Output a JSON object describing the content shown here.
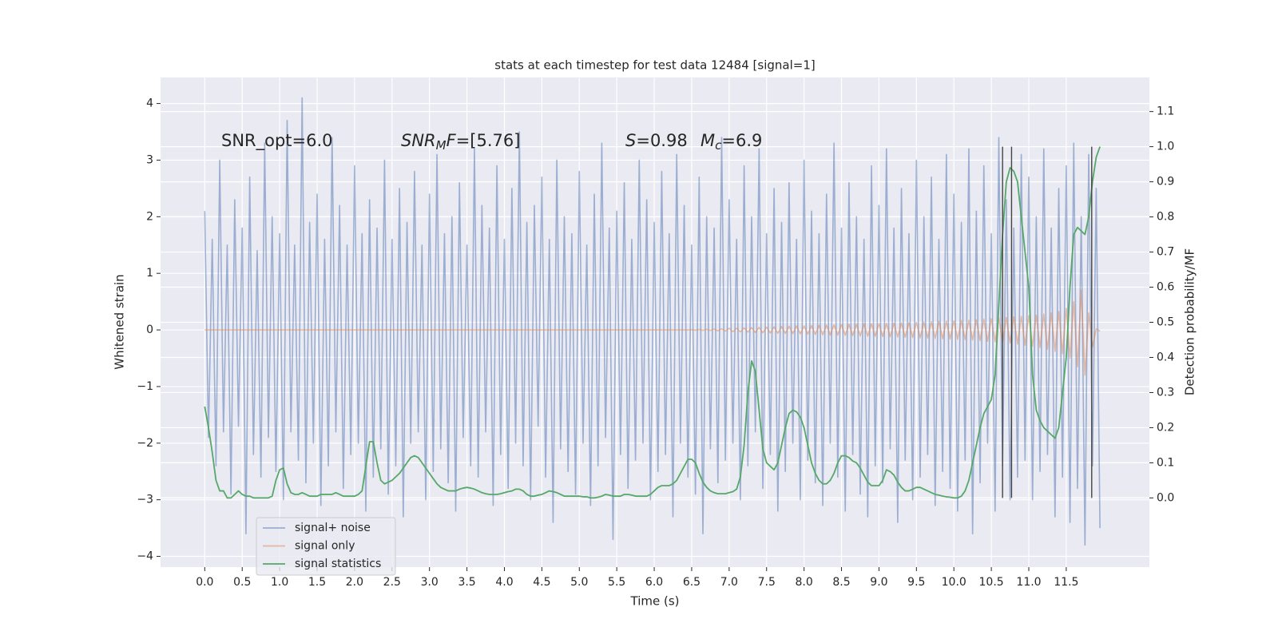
{
  "chart_data": {
    "type": "line",
    "title": "stats at each timestep for test data 12484 [signal=1]",
    "x_label": "Time (s)",
    "y_label": "Whitened strain",
    "y2_label": "Detection probability/MF",
    "xlim": [
      -0.59,
      12.61
    ],
    "ylim": [
      -4.19,
      4.46
    ],
    "y2lim": [
      -0.197,
      1.197
    ],
    "xticks": [
      {
        "value": 0,
        "label": "0.0"
      },
      0.5,
      {
        "value": 1,
        "label": "1.0"
      },
      1.5,
      {
        "value": 2,
        "label": "2.0"
      },
      2.5,
      {
        "value": 3,
        "label": "3.0"
      },
      3.5,
      {
        "value": 4,
        "label": "4.0"
      },
      4.5,
      {
        "value": 5,
        "label": "5.0"
      },
      5.5,
      {
        "value": 6,
        "label": "6.0"
      },
      6.5,
      {
        "value": 7,
        "label": "7.0"
      },
      7.5,
      {
        "value": 8,
        "label": "8.0"
      },
      8.5,
      {
        "value": 9,
        "label": "9.0"
      },
      9.5,
      {
        "value": 10,
        "label": "10.0"
      },
      10.5,
      {
        "value": 11,
        "label": "11.0"
      },
      11.5
    ],
    "yticks": [
      {
        "value": -4,
        "label": "−4"
      },
      {
        "value": -3,
        "label": "−3"
      },
      {
        "value": -2,
        "label": "−2"
      },
      {
        "value": -1,
        "label": "−1"
      },
      0,
      1,
      2,
      3,
      4
    ],
    "y2ticks": [
      {
        "value": 0,
        "label": "0.0"
      },
      0.1,
      0.2,
      0.3,
      0.4,
      0.5,
      0.6,
      0.7,
      0.8,
      0.9,
      {
        "value": 1,
        "label": "1.0"
      },
      1.1
    ],
    "grid": true,
    "legend": "lower left",
    "annotations": [
      [
        {
          "text": "SNR_opt=6.0"
        }
      ],
      [
        {
          "text": "SNR",
          "italic": true
        },
        {
          "text": "M",
          "italic": true,
          "sub": true
        },
        {
          "text": "F",
          "italic": true
        },
        {
          "text": "=[5.76]"
        }
      ],
      [
        {
          "text": "S",
          "italic": true
        },
        {
          "text": "=0.98"
        }
      ],
      [
        {
          "text": "M",
          "italic": true
        },
        {
          "text": "c",
          "italic": true,
          "sub": true
        },
        {
          "text": "=6.9"
        }
      ]
    ],
    "vline_color": "#444444",
    "vlines": [
      {
        "x": 10.65,
        "ymin": 0,
        "ymax": 1
      },
      {
        "x": 10.77,
        "ymin": 0,
        "ymax": 1
      },
      {
        "x": 11.84,
        "ymin": 0,
        "ymax": 1
      }
    ],
    "x": [
      0,
      0.05,
      0.1,
      0.15,
      0.2,
      0.25,
      0.3,
      0.35,
      0.4,
      0.45,
      0.5,
      0.55,
      0.6,
      0.65,
      0.7,
      0.75,
      0.8,
      0.85,
      0.9,
      0.95,
      1,
      1.05,
      1.1,
      1.15,
      1.2,
      1.25,
      1.3,
      1.35,
      1.4,
      1.45,
      1.5,
      1.55,
      1.6,
      1.65,
      1.7,
      1.75,
      1.8,
      1.85,
      1.9,
      1.95,
      2,
      2.05,
      2.1,
      2.15,
      2.2,
      2.25,
      2.3,
      2.35,
      2.4,
      2.45,
      2.5,
      2.55,
      2.6,
      2.65,
      2.7,
      2.75,
      2.8,
      2.85,
      2.9,
      2.95,
      3,
      3.05,
      3.1,
      3.15,
      3.2,
      3.25,
      3.3,
      3.35,
      3.4,
      3.45,
      3.5,
      3.55,
      3.6,
      3.65,
      3.7,
      3.75,
      3.8,
      3.85,
      3.9,
      3.95,
      4,
      4.05,
      4.1,
      4.15,
      4.2,
      4.25,
      4.3,
      4.35,
      4.4,
      4.45,
      4.5,
      4.55,
      4.6,
      4.65,
      4.7,
      4.75,
      4.8,
      4.85,
      4.9,
      4.95,
      5,
      5.05,
      5.1,
      5.15,
      5.2,
      5.25,
      5.3,
      5.35,
      5.4,
      5.45,
      5.5,
      5.55,
      5.6,
      5.65,
      5.7,
      5.75,
      5.8,
      5.85,
      5.9,
      5.95,
      6,
      6.05,
      6.1,
      6.15,
      6.2,
      6.25,
      6.3,
      6.35,
      6.4,
      6.45,
      6.5,
      6.55,
      6.6,
      6.65,
      6.7,
      6.75,
      6.8,
      6.85,
      6.9,
      6.95,
      7,
      7.05,
      7.1,
      7.15,
      7.2,
      7.25,
      7.3,
      7.35,
      7.4,
      7.45,
      7.5,
      7.55,
      7.6,
      7.65,
      7.7,
      7.75,
      7.8,
      7.85,
      7.9,
      7.95,
      8,
      8.05,
      8.1,
      8.15,
      8.2,
      8.25,
      8.3,
      8.35,
      8.4,
      8.45,
      8.5,
      8.55,
      8.6,
      8.65,
      8.7,
      8.75,
      8.8,
      8.85,
      8.9,
      8.95,
      9,
      9.05,
      9.1,
      9.15,
      9.2,
      9.25,
      9.3,
      9.35,
      9.4,
      9.45,
      9.5,
      9.55,
      9.6,
      9.65,
      9.7,
      9.75,
      9.8,
      9.85,
      9.9,
      9.95,
      10,
      10.05,
      10.1,
      10.15,
      10.2,
      10.25,
      10.3,
      10.35,
      10.4,
      10.45,
      10.5,
      10.55,
      10.6,
      10.65,
      10.7,
      10.75,
      10.8,
      10.85,
      10.9,
      10.95,
      11,
      11.05,
      11.1,
      11.15,
      11.2,
      11.25,
      11.3,
      11.35,
      11.4,
      11.45,
      11.5,
      11.55,
      11.6,
      11.65,
      11.7,
      11.75,
      11.8,
      11.85,
      11.9,
      11.95
    ],
    "series": [
      {
        "name": "signal+ noise",
        "color": "#4c72b0",
        "values": [
          2.1,
          -1.9,
          1.6,
          -2.4,
          3.0,
          -1.8,
          1.5,
          -2.9,
          2.3,
          -1.7,
          1.8,
          -3.6,
          2.7,
          -2.2,
          1.4,
          -2.6,
          3.3,
          -1.9,
          2.0,
          -2.5,
          1.7,
          -3.0,
          3.7,
          -1.8,
          1.5,
          -2.3,
          4.1,
          -2.7,
          1.9,
          -2.0,
          2.4,
          -3.1,
          1.6,
          -2.4,
          3.4,
          -1.8,
          2.2,
          -2.8,
          1.5,
          -2.2,
          2.9,
          -2.0,
          1.7,
          -3.2,
          2.3,
          -2.6,
          1.8,
          -2.1,
          3.0,
          -2.9,
          1.6,
          -2.4,
          2.5,
          -3.3,
          1.9,
          -2.0,
          2.8,
          -1.8,
          1.5,
          -3.0,
          2.4,
          -2.5,
          3.1,
          -2.1,
          1.7,
          -2.7,
          2.0,
          -3.2,
          2.6,
          -1.9,
          1.5,
          -2.4,
          3.2,
          -2.6,
          2.2,
          -1.8,
          1.8,
          -3.1,
          2.9,
          -2.2,
          1.6,
          -2.8,
          2.5,
          -2.0,
          3.5,
          -2.4,
          1.9,
          -3.0,
          2.2,
          -1.7,
          2.7,
          -2.6,
          1.6,
          -3.4,
          3.0,
          -2.1,
          2.0,
          -2.5,
          1.7,
          -2.9,
          2.8,
          -2.0,
          1.5,
          -3.1,
          2.4,
          -2.4,
          3.3,
          -1.9,
          1.8,
          -3.7,
          2.1,
          -2.2,
          2.6,
          -2.8,
          1.6,
          -2.3,
          3.0,
          -2.0,
          2.3,
          -3.0,
          1.9,
          -2.5,
          2.8,
          -2.2,
          1.7,
          -3.3,
          3.1,
          -2.0,
          2.2,
          -2.6,
          1.5,
          -2.9,
          2.7,
          -3.6,
          2.0,
          -2.1,
          1.8,
          -2.7,
          3.4,
          -2.3,
          2.3,
          -2.0,
          1.6,
          -3.0,
          2.9,
          -2.4,
          2.0,
          -1.8,
          3.2,
          -2.8,
          1.7,
          -2.2,
          2.5,
          -3.2,
          1.9,
          -2.5,
          2.6,
          -2.0,
          1.6,
          -3.0,
          3.0,
          -2.3,
          2.1,
          -2.7,
          1.7,
          -3.1,
          2.4,
          -2.0,
          3.3,
          -2.6,
          1.8,
          -3.2,
          2.6,
          -2.2,
          2.0,
          -2.9,
          1.6,
          -3.3,
          2.9,
          -2.4,
          2.2,
          -2.7,
          3.2,
          -2.1,
          1.8,
          -3.4,
          2.5,
          -2.3,
          1.7,
          -3.0,
          3.0,
          -2.6,
          2.0,
          -2.2,
          2.7,
          -3.1,
          1.6,
          -2.5,
          3.1,
          -2.8,
          2.4,
          -3.2,
          1.9,
          -2.3,
          3.2,
          -3.6,
          2.1,
          -2.7,
          2.9,
          -2.0,
          1.7,
          -3.2,
          3.4,
          -2.4,
          2.3,
          -3.0,
          1.8,
          -2.6,
          3.1,
          -2.3,
          2.7,
          -3.0,
          2.0,
          -2.5,
          3.2,
          -2.2,
          1.8,
          -3.3,
          2.5,
          -2.6,
          2.9,
          -3.4,
          3.3,
          -2.8,
          2.0,
          -3.8,
          3.1,
          -2.4,
          2.5,
          -3.5
        ]
      },
      {
        "name": "signal only",
        "color": "#dd8452",
        "values": [
          0,
          0,
          0,
          0,
          0,
          0,
          0,
          0,
          0,
          0,
          0,
          0,
          0,
          0,
          0,
          0,
          0,
          0,
          0,
          0,
          0,
          0,
          0,
          0,
          0,
          0,
          0,
          0,
          0,
          0,
          0,
          0,
          0,
          0,
          0,
          0,
          0,
          0,
          0,
          0,
          0,
          0,
          0,
          0,
          0,
          0,
          0,
          0,
          0,
          0,
          0,
          0,
          0,
          0,
          0,
          0,
          0,
          0,
          0,
          0,
          0,
          0,
          0,
          0,
          0,
          0,
          0,
          0,
          0,
          0,
          0,
          0,
          0,
          0,
          0,
          0,
          0,
          0,
          0,
          0,
          0,
          0,
          0,
          0,
          0,
          0,
          0,
          0,
          0,
          0,
          0,
          0,
          0,
          0,
          0,
          0,
          0,
          0,
          0,
          0,
          0,
          0,
          0,
          0,
          0,
          0,
          0,
          0,
          0,
          0,
          0,
          0,
          0,
          0,
          0,
          0,
          0,
          0,
          0,
          0,
          0,
          0,
          0,
          0,
          0,
          0,
          0,
          0,
          0,
          0,
          0.005,
          -0.005,
          0.008,
          -0.008,
          0.01,
          -0.01,
          0.015,
          -0.015,
          0.02,
          -0.02,
          0.03,
          -0.03,
          0.03,
          -0.035,
          0.035,
          -0.04,
          0.04,
          -0.045,
          0.045,
          -0.05,
          0.05,
          -0.055,
          0.055,
          -0.06,
          0.06,
          -0.06,
          0.065,
          -0.065,
          0.07,
          -0.07,
          0.07,
          -0.075,
          0.075,
          -0.08,
          0.08,
          -0.085,
          0.085,
          -0.09,
          0.09,
          -0.09,
          0.095,
          -0.095,
          0.1,
          -0.1,
          0.1,
          -0.105,
          0.105,
          -0.11,
          0.11,
          -0.11,
          0.11,
          -0.115,
          0.115,
          -0.12,
          0.12,
          -0.125,
          0.125,
          -0.13,
          0.13,
          -0.135,
          0.135,
          -0.14,
          0.14,
          -0.145,
          0.145,
          -0.15,
          0.15,
          -0.155,
          0.155,
          -0.16,
          0.16,
          -0.165,
          0.165,
          -0.17,
          0.17,
          -0.18,
          0.18,
          -0.19,
          0.19,
          -0.2,
          0.2,
          -0.21,
          0.21,
          -0.22,
          0.22,
          -0.23,
          0.23,
          -0.25,
          0.24,
          -0.27,
          0.25,
          -0.29,
          0.26,
          -0.31,
          0.28,
          -0.34,
          0.3,
          -0.38,
          0.33,
          -0.42,
          0.38,
          -0.5,
          0.5,
          -0.65,
          0.7,
          -0.8,
          0.3,
          -0.3,
          0.02,
          -0.02
        ]
      },
      {
        "name": "signal statistics",
        "color": "#55a868",
        "axis": "y2",
        "values": [
          0.26,
          0.2,
          0.13,
          0.05,
          0.02,
          0.02,
          0.0,
          0.0,
          0.01,
          0.02,
          0.01,
          0.005,
          0.005,
          0.0,
          0.0,
          0.0,
          0.0,
          0.0,
          0.005,
          0.05,
          0.08,
          0.085,
          0.04,
          0.015,
          0.01,
          0.01,
          0.015,
          0.01,
          0.005,
          0.005,
          0.005,
          0.01,
          0.01,
          0.01,
          0.01,
          0.015,
          0.01,
          0.005,
          0.005,
          0.005,
          0.005,
          0.01,
          0.02,
          0.09,
          0.16,
          0.16,
          0.1,
          0.05,
          0.04,
          0.045,
          0.05,
          0.06,
          0.07,
          0.085,
          0.1,
          0.115,
          0.12,
          0.115,
          0.1,
          0.085,
          0.07,
          0.055,
          0.04,
          0.03,
          0.025,
          0.02,
          0.02,
          0.02,
          0.025,
          0.028,
          0.03,
          0.028,
          0.025,
          0.02,
          0.015,
          0.012,
          0.01,
          0.01,
          0.01,
          0.012,
          0.015,
          0.018,
          0.02,
          0.025,
          0.025,
          0.02,
          0.01,
          0.005,
          0.005,
          0.008,
          0.01,
          0.015,
          0.02,
          0.018,
          0.015,
          0.01,
          0.005,
          0.005,
          0.005,
          0.005,
          0.005,
          0.003,
          0.003,
          0.0,
          0.0,
          0.002,
          0.005,
          0.01,
          0.008,
          0.005,
          0.005,
          0.005,
          0.01,
          0.01,
          0.008,
          0.005,
          0.005,
          0.005,
          0.005,
          0.01,
          0.02,
          0.03,
          0.035,
          0.035,
          0.035,
          0.04,
          0.05,
          0.07,
          0.09,
          0.11,
          0.11,
          0.1,
          0.07,
          0.045,
          0.03,
          0.02,
          0.015,
          0.012,
          0.012,
          0.012,
          0.015,
          0.018,
          0.025,
          0.06,
          0.15,
          0.3,
          0.39,
          0.36,
          0.25,
          0.14,
          0.1,
          0.09,
          0.08,
          0.1,
          0.15,
          0.2,
          0.24,
          0.25,
          0.245,
          0.23,
          0.2,
          0.15,
          0.1,
          0.07,
          0.05,
          0.04,
          0.04,
          0.05,
          0.07,
          0.1,
          0.12,
          0.12,
          0.115,
          0.105,
          0.1,
          0.085,
          0.065,
          0.045,
          0.035,
          0.035,
          0.035,
          0.05,
          0.08,
          0.075,
          0.065,
          0.045,
          0.03,
          0.02,
          0.02,
          0.025,
          0.03,
          0.03,
          0.025,
          0.02,
          0.015,
          0.01,
          0.008,
          0.005,
          0.003,
          0.002,
          0.0,
          0.0,
          0.005,
          0.02,
          0.05,
          0.1,
          0.15,
          0.2,
          0.24,
          0.26,
          0.28,
          0.35,
          0.55,
          0.75,
          0.9,
          0.94,
          0.93,
          0.9,
          0.8,
          0.7,
          0.6,
          0.35,
          0.25,
          0.22,
          0.2,
          0.19,
          0.18,
          0.17,
          0.2,
          0.3,
          0.4,
          0.6,
          0.75,
          0.77,
          0.76,
          0.75,
          0.8,
          0.9,
          0.97,
          1.0
        ]
      }
    ]
  }
}
